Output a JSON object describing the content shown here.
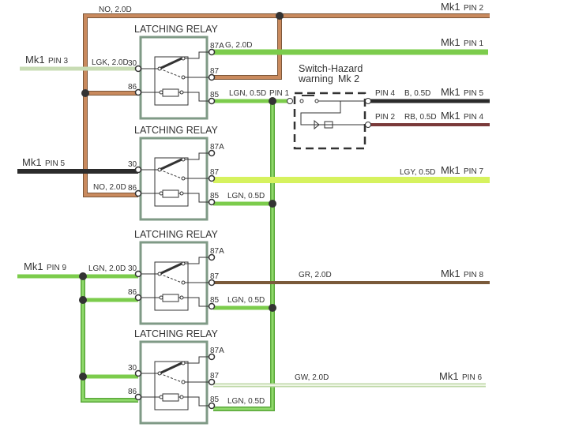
{
  "relays": [
    {
      "title": "LATCHING RELAY",
      "pin30": "30",
      "pin86": "86",
      "pin87a": "87A",
      "pin87": "87",
      "pin85": "85"
    },
    {
      "title": "LATCHING RELAY",
      "pin30": "30",
      "pin86": "86",
      "pin87a": "87A",
      "pin87": "87",
      "pin85": "85"
    },
    {
      "title": "LATCHING RELAY",
      "pin30": "30",
      "pin86": "86",
      "pin87a": "87A",
      "pin87": "87",
      "pin85": "85"
    },
    {
      "title": "LATCHING RELAY",
      "pin30": "30",
      "pin86": "86",
      "pin87a": "87A",
      "pin87": "87",
      "pin85": "85"
    }
  ],
  "wires": {
    "top_no": "NO, 2.0D",
    "mk1_pin2": {
      "mk": "Mk1",
      "pin": "PIN 2"
    },
    "g": "G, 2.0D",
    "mk1_pin1": {
      "mk": "Mk1",
      "pin": "PIN 1"
    },
    "mk1_pin3": {
      "mk": "Mk1",
      "pin": "PIN 3"
    },
    "lgk": "LGK, 2.0D",
    "lgn1": "LGN, 0.5D",
    "pin1": "PIN 1",
    "mk1_pin5_left": {
      "mk": "Mk1",
      "pin": "PIN 5"
    },
    "no2": "NO, 2.0D",
    "lgy": "LGY, 0.5D",
    "mk1_pin7": {
      "mk": "Mk1",
      "pin": "PIN 7"
    },
    "lgn2": "LGN, 0.5D",
    "mk1_pin9": {
      "mk": "Mk1",
      "pin": "PIN 9"
    },
    "lgn_20": "LGN, 2.0D",
    "gr": "GR, 2.0D",
    "mk1_pin8": {
      "mk": "Mk1",
      "pin": "PIN 8"
    },
    "lgn3": "LGN, 0.5D",
    "gw": "GW, 2.0D",
    "mk1_pin6": {
      "mk": "Mk1",
      "pin": "PIN 6"
    },
    "lgn4": "LGN, 0.5D"
  },
  "switch": {
    "title_line1": "Switch-Hazard",
    "title_line2": "warning",
    "mk2": "Mk 2",
    "pin4": "PIN 4",
    "b": "B, 0.5D",
    "mk1_pin5": {
      "mk": "Mk1",
      "pin": "PIN 5"
    },
    "pin2": "PIN 2",
    "rb": "RB, 0.5D",
    "mk1_pin4": {
      "mk": "Mk1",
      "pin": "PIN 4"
    }
  },
  "colors": {
    "brown": "#c98a5e",
    "green": "#7ccc4c",
    "light_green": "#c8dcb4",
    "yellow_green": "#d6f25e",
    "black": "#2b2b2b",
    "dark_brown": "#7a5a3a",
    "red_brown": "#7a3a3a",
    "pale_green": "#dfeecd",
    "relay_box": "#7f9a86"
  }
}
